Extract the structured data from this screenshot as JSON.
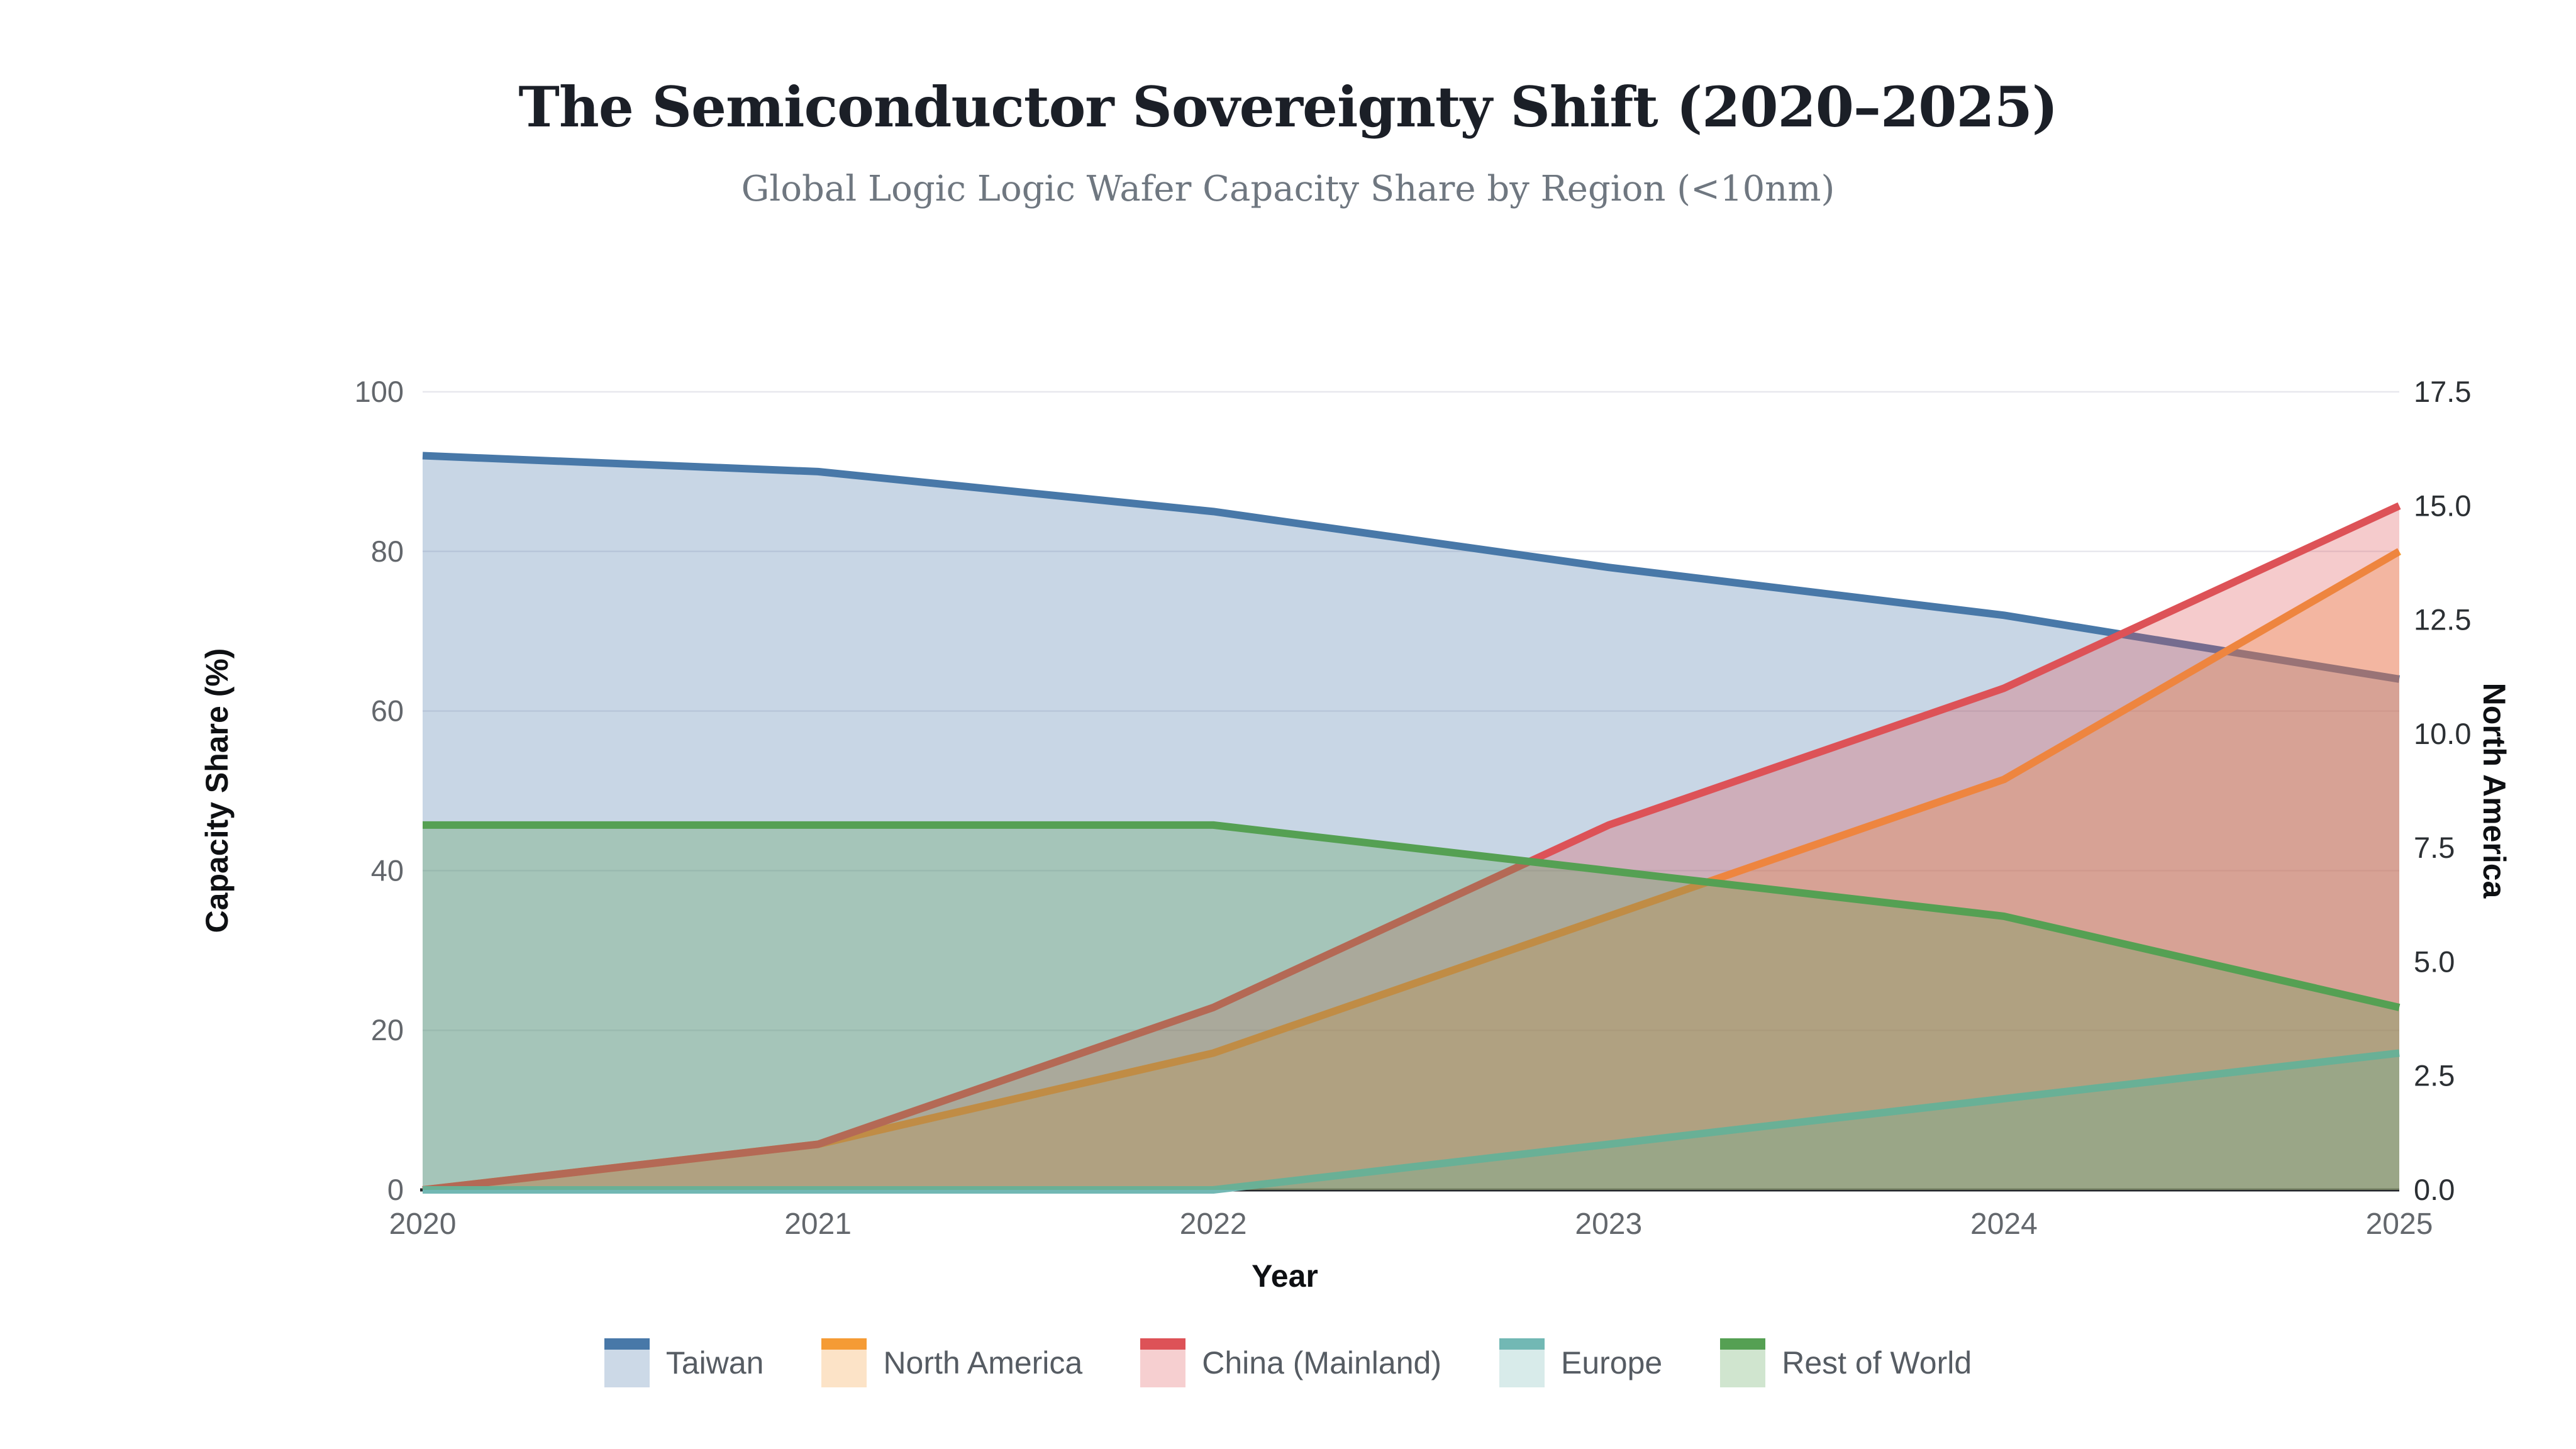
{
  "header": {
    "title": "The Semiconductor Sovereignty Shift (2020–2025)",
    "subtitle": "Global Logic Logic Wafer Capacity Share by Region (<10nm)"
  },
  "chart_data": {
    "type": "area",
    "x": [
      2020,
      2021,
      2022,
      2023,
      2024,
      2025
    ],
    "xlabel": "Year",
    "ylabel_left": "Capacity Share (%)",
    "ylabel_right": "North America",
    "ylim_left": [
      0,
      100
    ],
    "ylim_right": [
      0,
      17.5
    ],
    "yticks_left": [
      "0",
      "20",
      "40",
      "60",
      "80",
      "100"
    ],
    "yticks_right": [
      "0.0",
      "2.5",
      "5.0",
      "7.5",
      "10.0",
      "12.5",
      "15.0",
      "17.5"
    ],
    "grid": true,
    "legend_position": "bottom",
    "fill_opacity": 0.3,
    "series": [
      {
        "name": "Taiwan",
        "axis": "left",
        "color": "#4878a8",
        "values": [
          92,
          90,
          85,
          78,
          72,
          64
        ]
      },
      {
        "name": "North America",
        "axis": "right",
        "color": "#f59b35",
        "values": [
          0,
          1,
          3,
          6,
          9,
          14
        ]
      },
      {
        "name": "China (Mainland)",
        "axis": "right",
        "color": "#dd5257",
        "values": [
          0,
          1,
          4,
          8,
          11,
          15
        ]
      },
      {
        "name": "Europe",
        "axis": "right",
        "color": "#72b8b4",
        "values": [
          0,
          0,
          0,
          1,
          2,
          3
        ]
      },
      {
        "name": "Rest of World",
        "axis": "right",
        "color": "#55a053",
        "values": [
          8,
          8,
          8,
          7,
          6,
          4
        ]
      }
    ],
    "colors": {
      "gridline": "#e8e8ee",
      "axis_line": "#24272b",
      "tick_label_left": "#63676c",
      "tick_label_right": "#2c3034",
      "tick_label_x": "#63676c"
    }
  }
}
